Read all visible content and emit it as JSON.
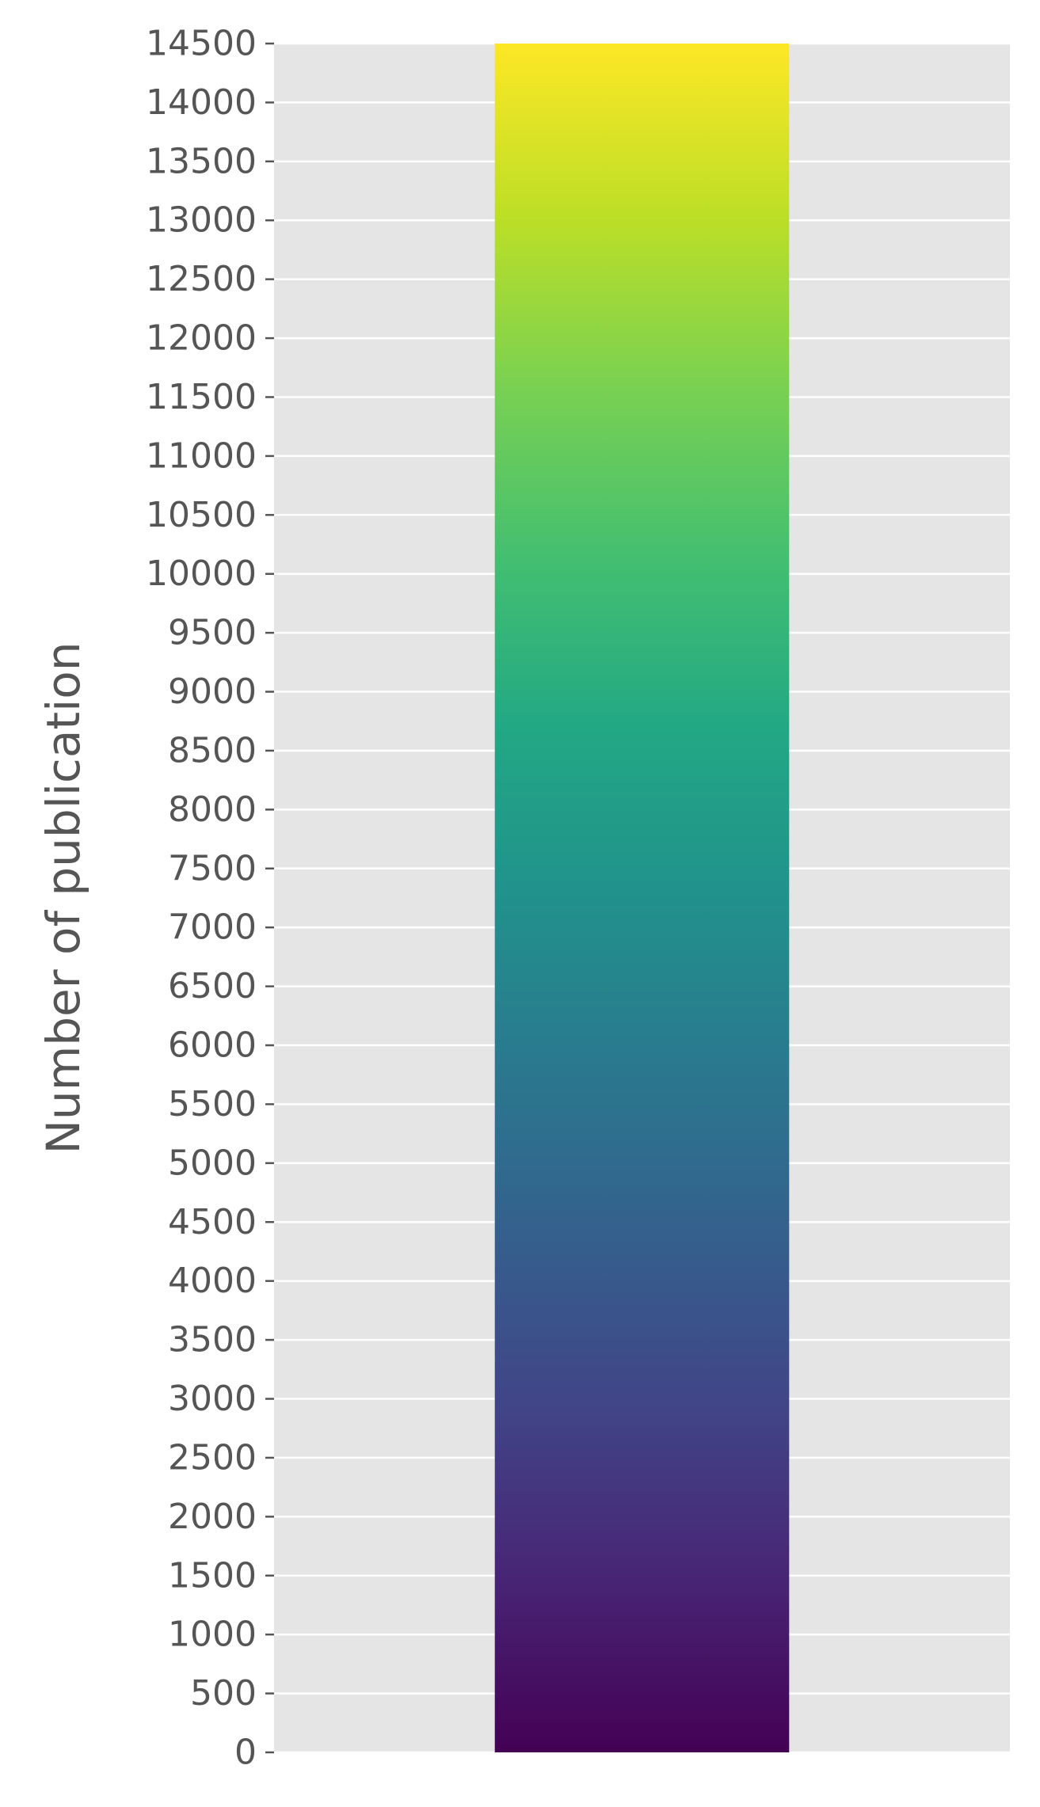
{
  "chart_data": {
    "type": "bar",
    "categories": [
      ""
    ],
    "values": [
      14500
    ],
    "title": "",
    "xlabel": "",
    "ylabel": "Number of publication",
    "ylim": [
      0,
      14500
    ],
    "yticks": [
      0,
      500,
      1000,
      1500,
      2000,
      2500,
      3000,
      3500,
      4000,
      4500,
      5000,
      5500,
      6000,
      6500,
      7000,
      7500,
      8000,
      8500,
      9000,
      9500,
      10000,
      10500,
      11000,
      11500,
      12000,
      12500,
      13000,
      13500,
      14000,
      14500
    ],
    "grid": true,
    "legend": "none",
    "colors": {
      "plot_background": "#e5e5e5",
      "grid": "#ffffff",
      "text": "#555555",
      "gradient": [
        "#440154",
        "#482475",
        "#414487",
        "#355f8d",
        "#2a788e",
        "#21918c",
        "#22a884",
        "#44bf70",
        "#7ad151",
        "#bddf26",
        "#fde725"
      ]
    }
  }
}
